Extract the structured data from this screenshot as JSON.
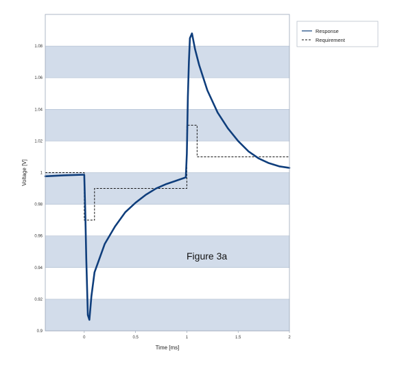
{
  "chart_data": {
    "type": "line",
    "title": "",
    "xlabel": "Time [ms]",
    "ylabel": "Voltage [V]",
    "xlim": [
      -0.38,
      2.0
    ],
    "ylim": [
      0.9,
      1.1
    ],
    "x_ticks": [
      "0",
      "0.5",
      "1",
      "1.5",
      "2"
    ],
    "y_ticks": [
      "0.9",
      "0.92",
      "0.94",
      "0.96",
      "0.98",
      "1",
      "1.02",
      "1.04",
      "1.06",
      "1.08"
    ],
    "grid": "alternating horizontal bands",
    "legend": {
      "placement": "top-right outside",
      "entries": [
        "Response",
        "Requirement"
      ]
    },
    "annotation": "Figure 3a",
    "colors": {
      "response": "#0f3e7c",
      "requirement": "#111111",
      "band": "#d2dcea"
    },
    "series": [
      {
        "name": "Response",
        "style": "solid",
        "x": [
          -0.38,
          -0.2,
          -0.05,
          0.0,
          0.01,
          0.02,
          0.035,
          0.05,
          0.07,
          0.1,
          0.15,
          0.2,
          0.3,
          0.4,
          0.5,
          0.6,
          0.7,
          0.8,
          0.9,
          0.99,
          1.0,
          1.01,
          1.02,
          1.03,
          1.05,
          1.08,
          1.12,
          1.2,
          1.3,
          1.4,
          1.5,
          1.6,
          1.7,
          1.8,
          1.9,
          2.0
        ],
        "y": [
          0.9977,
          0.9983,
          0.9986,
          0.9987,
          0.975,
          0.945,
          0.91,
          0.907,
          0.922,
          0.937,
          0.946,
          0.955,
          0.966,
          0.975,
          0.981,
          0.986,
          0.99,
          0.9928,
          0.995,
          0.997,
          1.012,
          1.048,
          1.07,
          1.085,
          1.088,
          1.078,
          1.068,
          1.052,
          1.038,
          1.028,
          1.02,
          1.0135,
          1.009,
          1.006,
          1.004,
          1.003
        ]
      },
      {
        "name": "Requirement",
        "style": "dashed",
        "x": [
          -0.38,
          0.0,
          0.0,
          0.1,
          0.1,
          1.0,
          1.0,
          1.1,
          1.1,
          2.0
        ],
        "y": [
          1.0,
          1.0,
          0.97,
          0.97,
          0.99,
          0.99,
          1.03,
          1.03,
          1.01,
          1.01
        ]
      }
    ]
  }
}
